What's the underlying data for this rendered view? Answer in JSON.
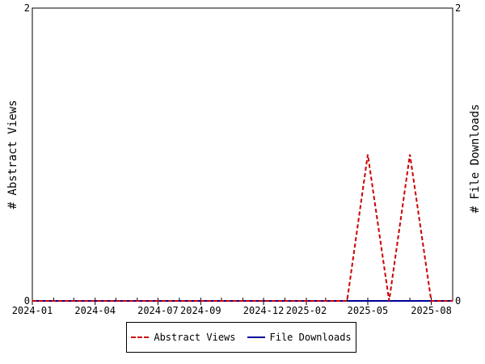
{
  "chart_data": {
    "type": "line",
    "x_ticks": [
      "2024-01",
      "2024-04",
      "2024-07",
      "2024-09",
      "2024-12",
      "2025-02",
      "2025-05",
      "2025-08"
    ],
    "x": [
      "2024-01",
      "2024-02",
      "2024-03",
      "2024-04",
      "2024-05",
      "2024-06",
      "2024-07",
      "2024-08",
      "2024-09",
      "2024-10",
      "2024-11",
      "2024-12",
      "2025-01",
      "2025-02",
      "2025-03",
      "2025-04",
      "2025-05",
      "2025-06",
      "2025-07",
      "2025-08",
      "2025-09"
    ],
    "series": [
      {
        "name": "Abstract Views",
        "axis": "left",
        "style": "dashed",
        "color": "#cc0000",
        "values": [
          0,
          0,
          0,
          0,
          0,
          0,
          0,
          0,
          0,
          0,
          0,
          0,
          0,
          0,
          0,
          0,
          1,
          0,
          1,
          0,
          0
        ]
      },
      {
        "name": "File Downloads",
        "axis": "right",
        "style": "solid",
        "color": "#000099",
        "values": [
          0,
          0,
          0,
          0,
          0,
          0,
          0,
          0,
          0,
          0,
          0,
          0,
          0,
          0,
          0,
          0,
          0,
          0,
          0,
          0,
          0
        ]
      }
    ],
    "ylabel_left": "# Abstract Views",
    "ylabel_right": "# File Downloads",
    "ylim_left": [
      0,
      2
    ],
    "ylim_right": [
      0,
      2
    ],
    "yticks_left": [
      "0",
      "2"
    ],
    "yticks_right": [
      "0",
      "2"
    ],
    "grid": false,
    "legend_position": "bottom"
  }
}
